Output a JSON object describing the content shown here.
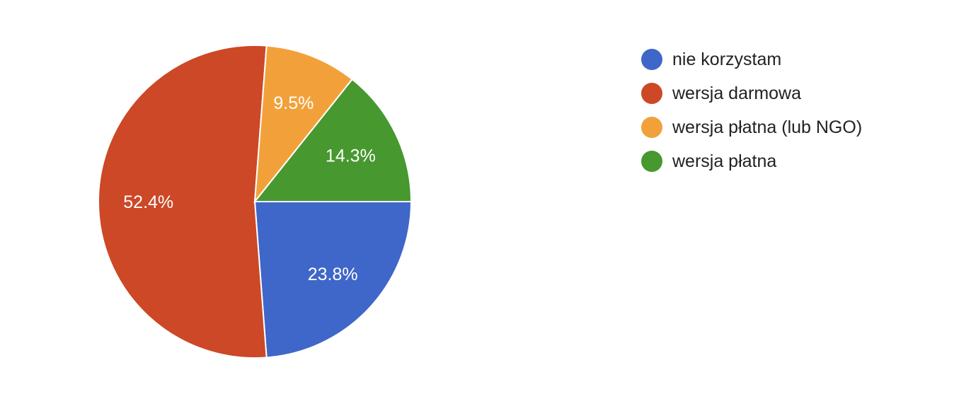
{
  "chart_data": {
    "type": "pie",
    "categories": [
      "nie korzystam",
      "wersja darmowa",
      "wersja płatna (lub NGO)",
      "wersja płatna"
    ],
    "values": [
      23.8,
      52.4,
      9.5,
      14.3
    ],
    "labels": [
      "23.8%",
      "52.4%",
      "9.5%",
      "14.3%"
    ],
    "colors": [
      "#3f66c9",
      "#cc4826",
      "#f2a13a",
      "#46982f"
    ],
    "start_angle": "3 o'clock",
    "direction": "clockwise",
    "legend_placement": "right"
  }
}
